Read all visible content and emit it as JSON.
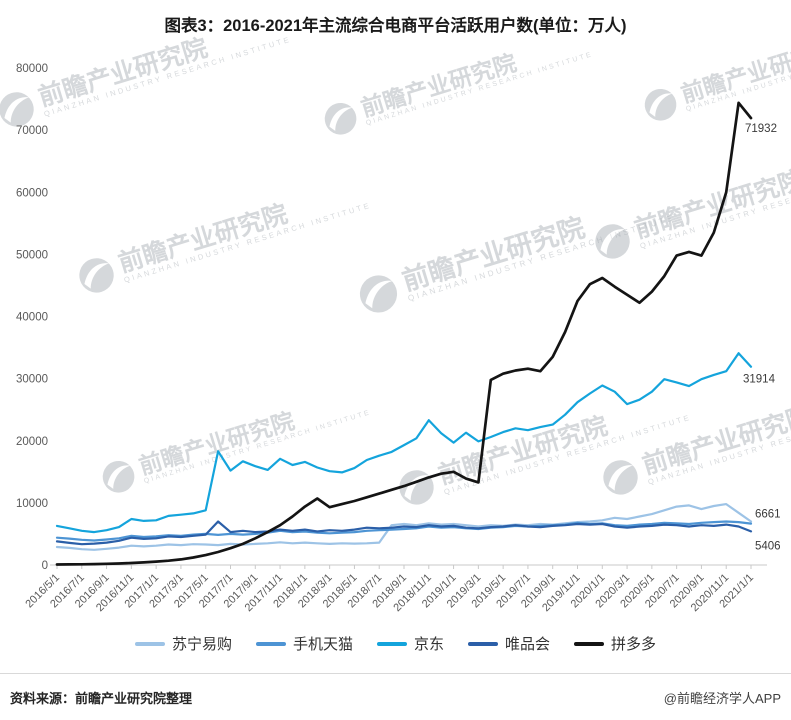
{
  "title": "图表3：2016-2021年主流综合电商平台活跃用户数(单位：万人)",
  "footer": {
    "source": "资料来源：前瞻产业研究院整理",
    "credit": "@前瞻经济学人APP"
  },
  "watermark": {
    "text": "前瞻产业研究院",
    "subtext": "QIANZHAN INDUSTRY RESEARCH INSTITUTE"
  },
  "chart_data": {
    "type": "line",
    "title": "图表3：2016-2021年主流综合电商平台活跃用户数(单位：万人)",
    "unit": "万人",
    "grid": false,
    "legend_position": "bottom",
    "ylim": [
      0,
      80000
    ],
    "yticks": [
      0,
      10000,
      20000,
      30000,
      40000,
      50000,
      60000,
      70000,
      80000
    ],
    "x_tick_labels": [
      "2016/5/1",
      "2016/7/1",
      "2016/9/1",
      "2016/11/1",
      "2017/1/1",
      "2017/3/1",
      "2017/5/1",
      "2017/7/1",
      "2017/9/1",
      "2017/11/1",
      "2018/1/1",
      "2018/3/1",
      "2018/5/1",
      "2018/7/1",
      "2018/9/1",
      "2018/11/1",
      "2019/1/1",
      "2019/3/1",
      "2019/5/1",
      "2019/7/1",
      "2019/9/1",
      "2019/11/1",
      "2020/1/1",
      "2020/3/1",
      "2020/5/1",
      "2020/7/1",
      "2020/9/1",
      "2020/11/1",
      "2021/1/1"
    ],
    "x_note": "monthly points from 2016/5 to 2021/1, ticks labeled every 2 months",
    "series": [
      {
        "name": "苏宁易购",
        "color": "#9dc3e6",
        "values": [
          2900,
          2750,
          2550,
          2450,
          2600,
          2800,
          3100,
          3000,
          3100,
          3300,
          3200,
          3350,
          3300,
          3200,
          3400,
          3300,
          3400,
          3500,
          3650,
          3500,
          3600,
          3500,
          3400,
          3500,
          3450,
          3500,
          3600,
          6400,
          6600,
          6400,
          6700,
          6500,
          6600,
          6400,
          6200,
          6400,
          6300,
          6500,
          6400,
          6600,
          6500,
          6700,
          6900,
          7000,
          7200,
          7600,
          7400,
          7800,
          8200,
          8800,
          9400,
          9600,
          9000,
          9500,
          9800,
          8400,
          7000
        ]
      },
      {
        "name": "手机天猫",
        "color": "#4d94d4",
        "values": [
          4400,
          4250,
          4050,
          3950,
          4100,
          4300,
          4700,
          4500,
          4600,
          4800,
          4700,
          4900,
          5000,
          4850,
          5000,
          4900,
          5000,
          5200,
          5500,
          5300,
          5400,
          5200,
          5100,
          5200,
          5300,
          5500,
          5600,
          5700,
          5800,
          5900,
          6200,
          6000,
          6100,
          5900,
          5800,
          6000,
          6100,
          6300,
          6200,
          6300,
          6400,
          6500,
          6800,
          6600,
          6700,
          6400,
          6300,
          6500,
          6600,
          6800,
          6700,
          6600,
          6800,
          6900,
          7000,
          6900,
          6661
        ]
      },
      {
        "name": "京东",
        "color": "#14a4dc",
        "values": [
          6300,
          5900,
          5500,
          5300,
          5600,
          6100,
          7400,
          7100,
          7200,
          7900,
          8100,
          8300,
          8800,
          18300,
          15200,
          16700,
          15900,
          15300,
          17100,
          16100,
          16600,
          15700,
          15100,
          14900,
          15600,
          16900,
          17600,
          18200,
          19300,
          20400,
          23300,
          21200,
          19700,
          21300,
          19900,
          20600,
          21400,
          22000,
          21700,
          22200,
          22600,
          24200,
          26200,
          27600,
          28900,
          27900,
          25900,
          26600,
          27900,
          29900,
          29400,
          28800,
          29900,
          30600,
          31200,
          34100,
          31914
        ]
      },
      {
        "name": "唯品会",
        "color": "#2b5fa8",
        "values": [
          3800,
          3550,
          3350,
          3450,
          3600,
          3900,
          4400,
          4200,
          4300,
          4600,
          4500,
          4700,
          4900,
          7000,
          5300,
          5500,
          5300,
          5400,
          5700,
          5500,
          5700,
          5400,
          5600,
          5500,
          5700,
          6000,
          5900,
          6000,
          6200,
          6100,
          6400,
          6200,
          6300,
          6000,
          5900,
          6100,
          6200,
          6400,
          6200,
          6100,
          6300,
          6400,
          6600,
          6500,
          6600,
          6200,
          6000,
          6200,
          6300,
          6500,
          6400,
          6200,
          6400,
          6300,
          6500,
          6200,
          5406
        ]
      },
      {
        "name": "拼多多",
        "color": "#141414",
        "values": [
          80,
          100,
          120,
          150,
          190,
          240,
          320,
          420,
          550,
          700,
          900,
          1200,
          1600,
          2100,
          2700,
          3400,
          4300,
          5300,
          6400,
          7800,
          9400,
          10700,
          9300,
          9800,
          10300,
          10900,
          11500,
          12100,
          12700,
          13400,
          14100,
          14700,
          15000,
          13900,
          13300,
          29800,
          30800,
          31300,
          31600,
          31200,
          33500,
          37500,
          42500,
          45200,
          46200,
          44800,
          43500,
          42200,
          44000,
          46500,
          49800,
          50400,
          49800,
          53500,
          60000,
          74400,
          71932
        ]
      }
    ],
    "end_labels": [
      {
        "series": "拼多多",
        "value": 71932
      },
      {
        "series": "京东",
        "value": 31914
      },
      {
        "series": "手机天猫",
        "value": 6661
      },
      {
        "series": "唯品会",
        "value": 5406
      }
    ]
  }
}
